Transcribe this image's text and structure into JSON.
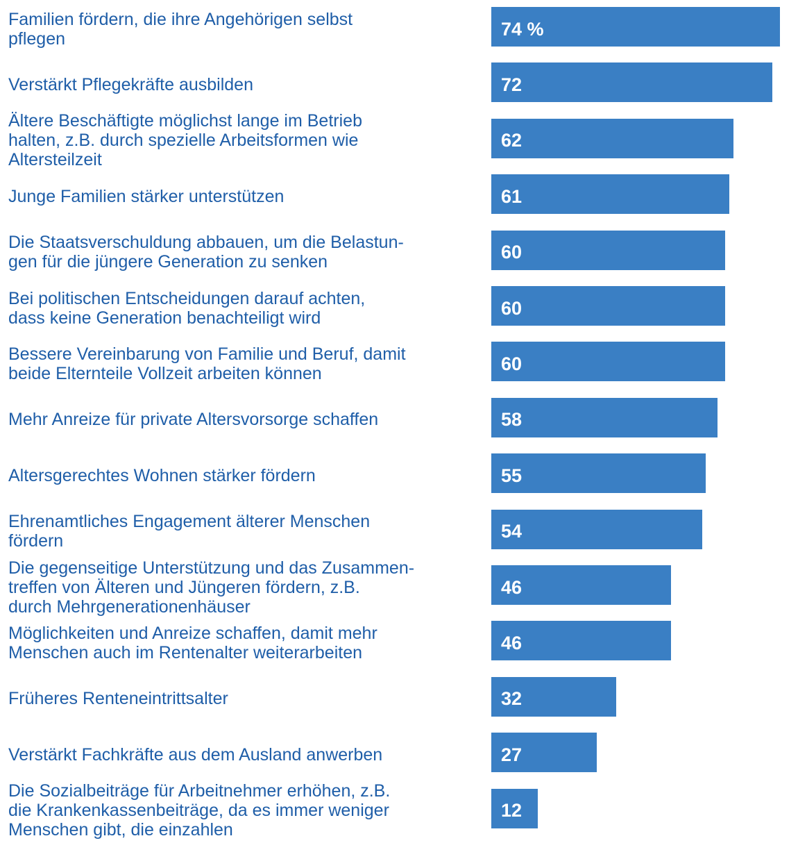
{
  "chart_data": {
    "type": "bar",
    "orientation": "horizontal",
    "color": "#3a7fc4",
    "categories": [
      "Familien fördern, die ihre Angehörigen selbst\npflegen",
      "Verstärkt Pflegekräfte ausbilden",
      "Ältere Beschäftigte möglichst lange im Betrieb\nhalten, z.B. durch spezielle Arbeitsformen wie\nAltersteilzeit",
      "Junge Familien stärker unterstützen",
      "Die Staatsverschuldung abbauen, um die Belastun-\ngen für die jüngere Generation zu senken",
      "Bei politischen Entscheidungen darauf achten,\ndass keine Generation benachteiligt wird",
      "Bessere Vereinbarung von Familie und Beruf, damit\nbeide Elternteile Vollzeit arbeiten können",
      "Mehr Anreize für private Altersvorsorge schaffen",
      "Altersgerechtes Wohnen stärker fördern",
      "Ehrenamtliches Engagement älterer Menschen\nfördern",
      "Die gegenseitige Unterstützung und das Zusammen-\ntreffen von Älteren und Jüngeren fördern, z.B.\ndurch Mehrgenerationenhäuser",
      "Möglichkeiten und Anreize schaffen, damit mehr\nMenschen auch im Rentenalter weiterarbeiten",
      "Früheres Renteneintrittsalter",
      "Verstärkt Fachkräfte aus dem Ausland anwerben",
      "Die Sozialbeiträge für Arbeitnehmer erhöhen, z.B.\ndie Krankenkassenbeiträge, da es immer weniger\nMenschen gibt, die einzahlen"
    ],
    "values": [
      74,
      72,
      62,
      61,
      60,
      60,
      60,
      58,
      55,
      54,
      46,
      46,
      32,
      27,
      12
    ],
    "value_labels": [
      "74 %",
      "72",
      "62",
      "61",
      "60",
      "60",
      "60",
      "58",
      "55",
      "54",
      "46",
      "46",
      "32",
      "27",
      "12"
    ]
  }
}
